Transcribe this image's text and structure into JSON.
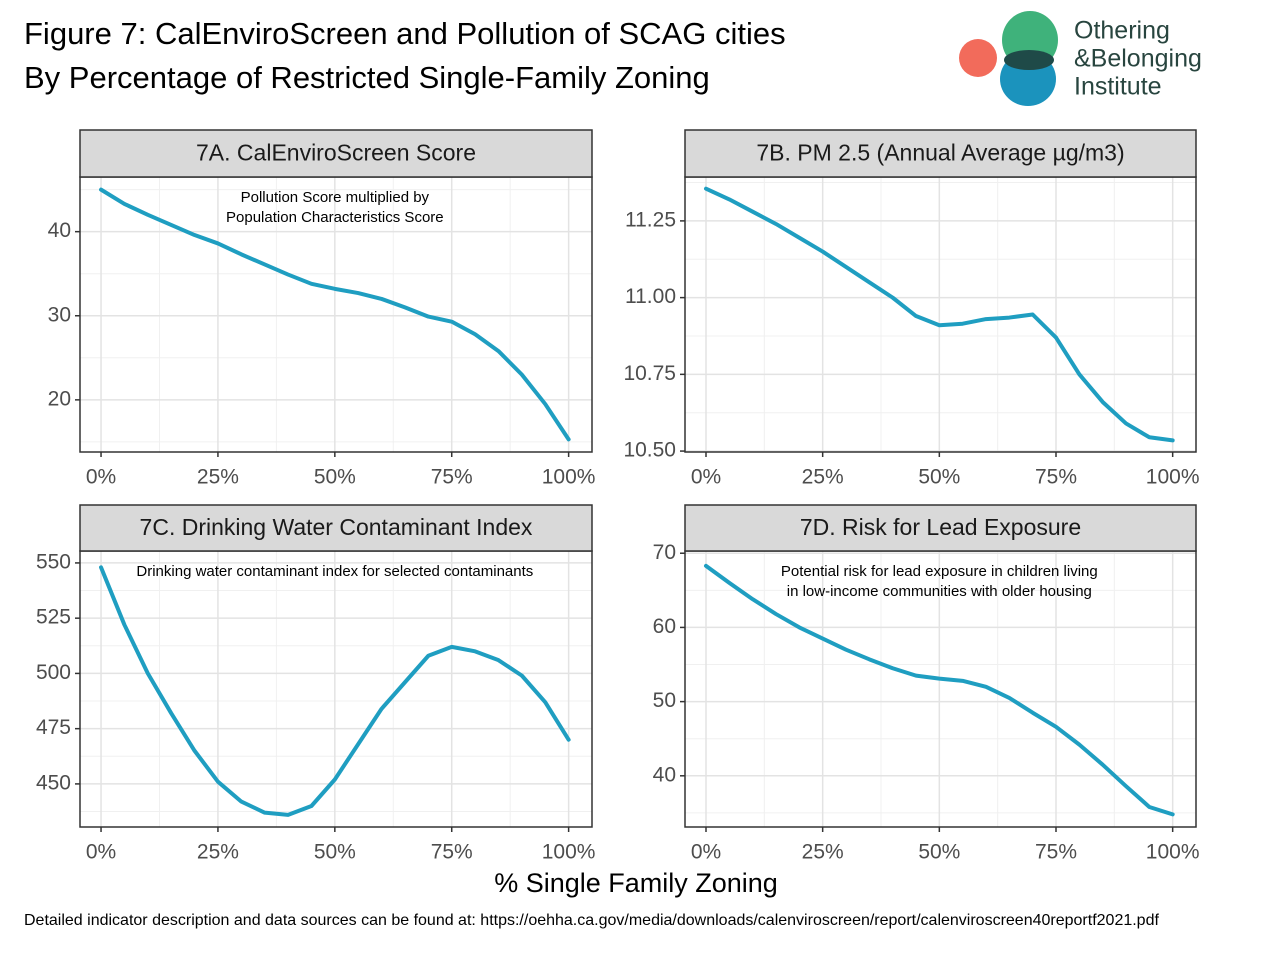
{
  "title": [
    "Figure 7:  CalEnviroScreen and Pollution of SCAG cities",
    "By Percentage of Restricted Single-Family Zoning"
  ],
  "logo": [
    "Othering",
    "&Belonging",
    "Institute"
  ],
  "x_label": "% Single Family Zoning",
  "footnote": "Detailed indicator description and data sources can be found at: https://oehha.ca.gov/media/downloads/calenviroscreen/report/calenviroscreen40reportf2021.pdf",
  "chart_data": [
    {
      "type": "line",
      "title": "7A. CalEnviroScreen Score",
      "annotation": [
        "Pollution Score multiplied by",
        "Population Characteristics Score"
      ],
      "x": [
        0,
        5,
        10,
        15,
        20,
        25,
        30,
        35,
        40,
        45,
        50,
        55,
        60,
        65,
        70,
        75,
        80,
        85,
        90,
        95,
        100
      ],
      "series": [
        {
          "color": "#1f9ec1",
          "values": [
            45.0,
            43.3,
            42.0,
            40.8,
            39.6,
            38.6,
            37.3,
            36.1,
            34.9,
            33.8,
            33.2,
            32.7,
            32.0,
            31.0,
            29.9,
            29.3,
            27.8,
            25.8,
            23.0,
            19.5,
            15.3
          ]
        }
      ],
      "xlim": [
        -4.5,
        105
      ],
      "xticks": [
        {
          "value": 0,
          "label": "0%"
        },
        {
          "value": 25,
          "label": "25%"
        },
        {
          "value": 50,
          "label": "50%"
        },
        {
          "value": 75,
          "label": "75%"
        },
        {
          "value": 100,
          "label": "100%"
        }
      ],
      "ylim": [
        13.8,
        46.5
      ],
      "yticks": [
        20,
        30,
        40
      ],
      "grid": true
    },
    {
      "type": "line",
      "title": "7B. PM 2.5 (Annual Average µg/m3)",
      "x": [
        0,
        5,
        10,
        15,
        20,
        25,
        30,
        35,
        40,
        45,
        50,
        55,
        60,
        65,
        70,
        75,
        80,
        85,
        90,
        95,
        100
      ],
      "series": [
        {
          "color": "#1f9ec1",
          "values": [
            11.355,
            11.32,
            11.28,
            11.24,
            11.195,
            11.15,
            11.1,
            11.05,
            11.0,
            10.94,
            10.91,
            10.915,
            10.93,
            10.935,
            10.945,
            10.87,
            10.75,
            10.66,
            10.59,
            10.545,
            10.535
          ]
        }
      ],
      "xlim": [
        -4.5,
        105
      ],
      "xticks": [
        {
          "value": 0,
          "label": "0%"
        },
        {
          "value": 25,
          "label": "25%"
        },
        {
          "value": 50,
          "label": "50%"
        },
        {
          "value": 75,
          "label": "75%"
        },
        {
          "value": 100,
          "label": "100%"
        }
      ],
      "ylim": [
        10.497,
        11.393
      ],
      "yticks": [
        {
          "value": 10.5,
          "label": "10.50"
        },
        {
          "value": 10.75,
          "label": "10.75"
        },
        {
          "value": 11,
          "label": "11.00"
        },
        {
          "value": 11.25,
          "label": "11.25"
        }
      ],
      "grid": true
    },
    {
      "type": "line",
      "title": "7C. Drinking Water Contaminant Index",
      "annotation": [
        "Drinking water contaminant index for selected contaminants"
      ],
      "x": [
        0,
        5,
        10,
        15,
        20,
        25,
        30,
        35,
        40,
        45,
        50,
        55,
        60,
        65,
        70,
        75,
        80,
        85,
        90,
        95,
        100
      ],
      "series": [
        {
          "color": "#1f9ec1",
          "values": [
            548,
            522,
            500,
            482,
            465,
            451,
            442,
            437,
            436,
            440,
            452,
            468,
            484,
            496,
            508,
            512,
            510,
            506,
            499,
            487,
            470
          ]
        }
      ],
      "xlim": [
        -4.5,
        105
      ],
      "xticks": [
        {
          "value": 0,
          "label": "0%"
        },
        {
          "value": 25,
          "label": "25%"
        },
        {
          "value": 50,
          "label": "50%"
        },
        {
          "value": 75,
          "label": "75%"
        },
        {
          "value": 100,
          "label": "100%"
        }
      ],
      "ylim": [
        430.5,
        555.4
      ],
      "yticks": [
        450,
        475,
        500,
        525,
        550
      ],
      "grid": true
    },
    {
      "type": "line",
      "title": "7D. Risk for Lead Exposure",
      "annotation": [
        "Potential risk for lead exposure in children living",
        "in low-income communities with older housing"
      ],
      "x": [
        0,
        5,
        10,
        15,
        20,
        25,
        30,
        35,
        40,
        45,
        50,
        55,
        60,
        65,
        70,
        75,
        80,
        85,
        90,
        95,
        100
      ],
      "series": [
        {
          "color": "#1f9ec1",
          "values": [
            68.3,
            66.0,
            63.8,
            61.8,
            60.0,
            58.5,
            57.0,
            55.7,
            54.5,
            53.5,
            53.1,
            52.8,
            52.0,
            50.5,
            48.5,
            46.6,
            44.2,
            41.5,
            38.6,
            35.8,
            34.8
          ]
        }
      ],
      "xlim": [
        -4.5,
        105
      ],
      "xticks": [
        {
          "value": 0,
          "label": "0%"
        },
        {
          "value": 25,
          "label": "25%"
        },
        {
          "value": 50,
          "label": "50%"
        },
        {
          "value": 75,
          "label": "75%"
        },
        {
          "value": 100,
          "label": "100%"
        }
      ],
      "ylim": [
        33.1,
        70.3
      ],
      "yticks": [
        40,
        50,
        60,
        70
      ],
      "grid": true
    }
  ]
}
